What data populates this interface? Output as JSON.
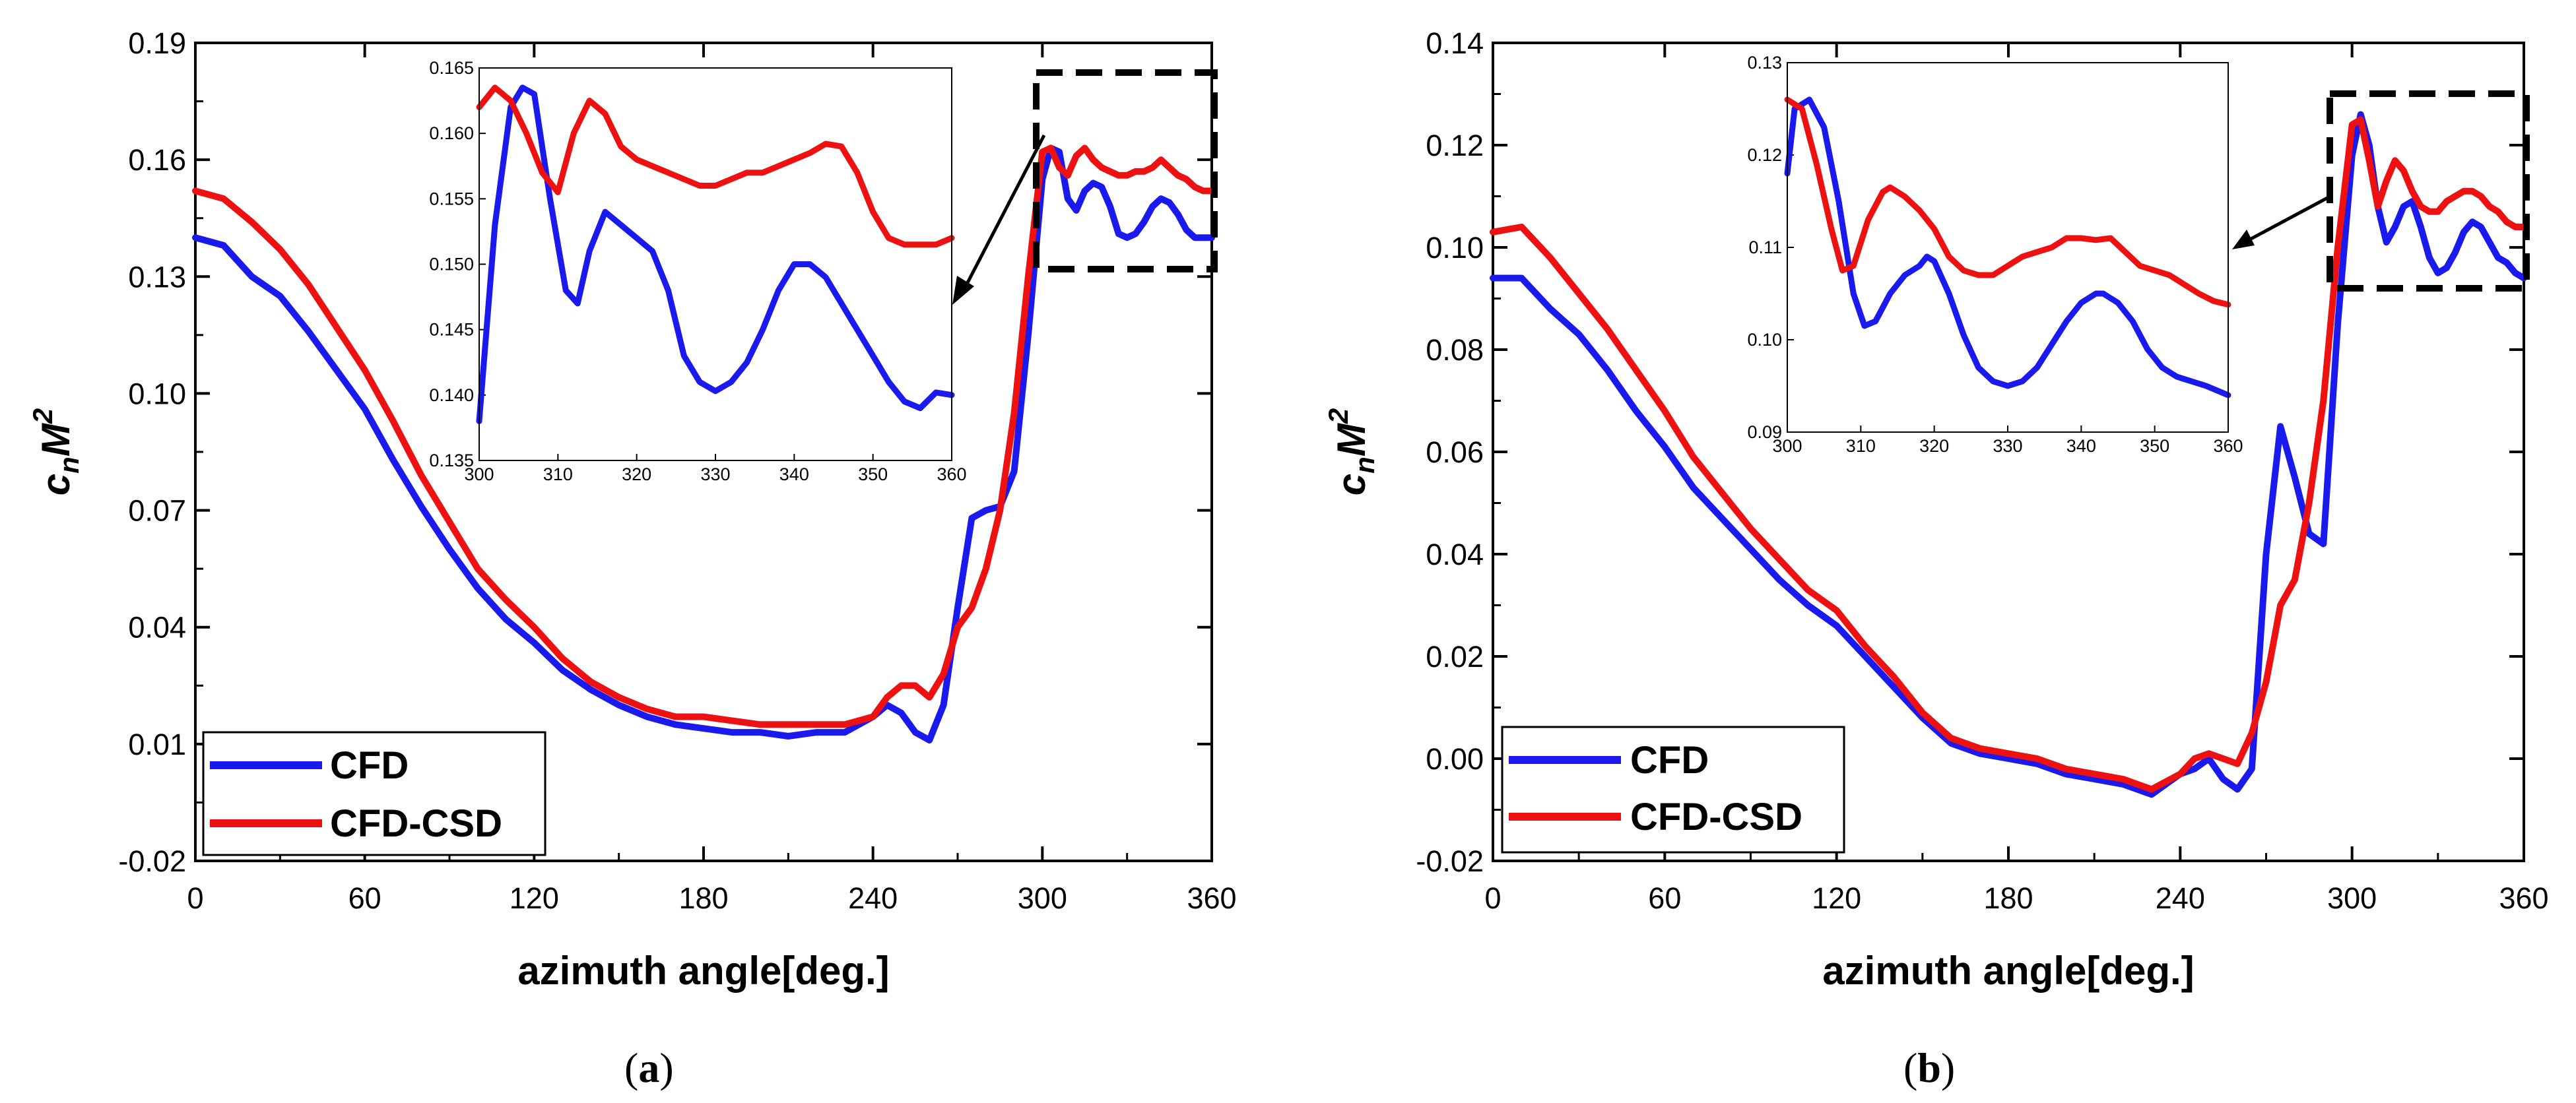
{
  "chart_data": [
    {
      "type": "line",
      "panel": "a",
      "caption": "(a)",
      "xlabel": "azimuth angle[deg.]",
      "ylabel": "c_n M^2",
      "xlim": [
        0,
        360
      ],
      "ylim": [
        -0.02,
        0.19
      ],
      "xticks": [
        0,
        60,
        120,
        180,
        240,
        300,
        360
      ],
      "yticks": [
        -0.02,
        0.01,
        0.04,
        0.07,
        0.1,
        0.13,
        0.16,
        0.19
      ],
      "legend": "bottom-left",
      "series": [
        {
          "name": "CFD",
          "color": "#1a1aee",
          "x": [
            0,
            10,
            20,
            30,
            40,
            50,
            60,
            70,
            80,
            90,
            100,
            110,
            120,
            130,
            140,
            150,
            160,
            170,
            180,
            190,
            200,
            210,
            220,
            230,
            240,
            245,
            250,
            255,
            260,
            265,
            270,
            275,
            280,
            285,
            290,
            295,
            300,
            303,
            306,
            309,
            312,
            315,
            318,
            321,
            324,
            327,
            330,
            333,
            336,
            339,
            342,
            345,
            348,
            351,
            354,
            357,
            360
          ],
          "y": [
            0.14,
            0.138,
            0.13,
            0.125,
            0.116,
            0.106,
            0.096,
            0.083,
            0.071,
            0.06,
            0.05,
            0.042,
            0.036,
            0.029,
            0.024,
            0.02,
            0.017,
            0.015,
            0.014,
            0.013,
            0.013,
            0.012,
            0.013,
            0.013,
            0.017,
            0.02,
            0.018,
            0.013,
            0.011,
            0.02,
            0.045,
            0.068,
            0.07,
            0.071,
            0.08,
            0.115,
            0.155,
            0.163,
            0.162,
            0.15,
            0.147,
            0.152,
            0.154,
            0.153,
            0.148,
            0.141,
            0.14,
            0.141,
            0.144,
            0.148,
            0.15,
            0.149,
            0.146,
            0.142,
            0.14,
            0.14,
            0.14
          ]
        },
        {
          "name": "CFD-CSD",
          "color": "#ee1111",
          "x": [
            0,
            10,
            20,
            30,
            40,
            50,
            60,
            70,
            80,
            90,
            100,
            110,
            120,
            130,
            140,
            150,
            160,
            170,
            180,
            190,
            200,
            210,
            220,
            230,
            240,
            245,
            250,
            255,
            260,
            265,
            270,
            275,
            280,
            285,
            290,
            295,
            300,
            303,
            306,
            309,
            312,
            315,
            318,
            321,
            324,
            327,
            330,
            333,
            336,
            339,
            342,
            345,
            348,
            351,
            354,
            357,
            360
          ],
          "y": [
            0.152,
            0.15,
            0.144,
            0.137,
            0.128,
            0.117,
            0.106,
            0.093,
            0.079,
            0.067,
            0.055,
            0.047,
            0.04,
            0.032,
            0.026,
            0.022,
            0.019,
            0.017,
            0.017,
            0.016,
            0.015,
            0.015,
            0.015,
            0.015,
            0.017,
            0.022,
            0.025,
            0.025,
            0.022,
            0.028,
            0.04,
            0.045,
            0.055,
            0.07,
            0.095,
            0.13,
            0.162,
            0.163,
            0.158,
            0.156,
            0.161,
            0.163,
            0.16,
            0.158,
            0.157,
            0.156,
            0.156,
            0.157,
            0.157,
            0.158,
            0.16,
            0.158,
            0.156,
            0.155,
            0.153,
            0.152,
            0.152
          ]
        }
      ],
      "inset": {
        "xlim": [
          300,
          360
        ],
        "ylim": [
          0.135,
          0.165
        ],
        "xticks": [
          300,
          310,
          320,
          330,
          340,
          350,
          360
        ],
        "yticks": [
          0.135,
          0.14,
          0.145,
          0.15,
          0.155,
          0.16,
          0.165
        ],
        "series": [
          {
            "name": "CFD",
            "x": [
              300,
              302,
              304,
              305.5,
              307,
              309,
              311,
              312.5,
              314,
              316,
              318,
              320,
              322,
              324,
              326,
              328,
              330,
              332,
              334,
              336,
              338,
              340,
              342,
              344,
              346,
              348,
              350,
              352,
              354,
              356,
              358,
              360
            ],
            "y": [
              0.138,
              0.153,
              0.162,
              0.1635,
              0.163,
              0.155,
              0.148,
              0.147,
              0.151,
              0.154,
              0.153,
              0.152,
              0.151,
              0.148,
              0.143,
              0.141,
              0.1403,
              0.141,
              0.1425,
              0.145,
              0.148,
              0.15,
              0.15,
              0.149,
              0.147,
              0.145,
              0.143,
              0.141,
              0.1395,
              0.139,
              0.1402,
              0.14
            ]
          },
          {
            "name": "CFD-CSD",
            "x": [
              300,
              302,
              304,
              306,
              308,
              310,
              312,
              314,
              316,
              318,
              320,
              322,
              324,
              326,
              328,
              330,
              332,
              334,
              336,
              338,
              340,
              342,
              344,
              346,
              348,
              350,
              352,
              354,
              356,
              358,
              360
            ],
            "y": [
              0.162,
              0.1635,
              0.1625,
              0.16,
              0.157,
              0.1555,
              0.16,
              0.1625,
              0.1615,
              0.159,
              0.158,
              0.1575,
              0.157,
              0.1565,
              0.156,
              0.156,
              0.1565,
              0.157,
              0.157,
              0.1575,
              0.158,
              0.1585,
              0.1592,
              0.159,
              0.157,
              0.154,
              0.152,
              0.1515,
              0.1515,
              0.1515,
              0.152
            ]
          }
        ]
      }
    },
    {
      "type": "line",
      "panel": "b",
      "caption": "(b)",
      "xlabel": "azimuth angle[deg.]",
      "ylabel": "c_n M^2",
      "xlim": [
        0,
        360
      ],
      "ylim": [
        -0.02,
        0.14
      ],
      "xticks": [
        0,
        60,
        120,
        180,
        240,
        300,
        360
      ],
      "yticks": [
        -0.02,
        0.0,
        0.02,
        0.04,
        0.06,
        0.08,
        0.1,
        0.12,
        0.14
      ],
      "legend": "bottom-left",
      "series": [
        {
          "name": "CFD",
          "color": "#1a1aee",
          "x": [
            0,
            10,
            20,
            30,
            40,
            50,
            60,
            70,
            80,
            90,
            100,
            110,
            120,
            130,
            140,
            150,
            160,
            170,
            180,
            190,
            200,
            210,
            220,
            230,
            240,
            245,
            250,
            255,
            260,
            265,
            270,
            275,
            280,
            285,
            290,
            295,
            300,
            303,
            306,
            309,
            312,
            315,
            318,
            321,
            324,
            327,
            330,
            333,
            336,
            339,
            342,
            345,
            348,
            351,
            354,
            357,
            360
          ],
          "y": [
            0.094,
            0.094,
            0.088,
            0.083,
            0.076,
            0.068,
            0.061,
            0.053,
            0.047,
            0.041,
            0.035,
            0.03,
            0.026,
            0.02,
            0.014,
            0.008,
            0.003,
            0.001,
            0.0,
            -0.001,
            -0.003,
            -0.004,
            -0.005,
            -0.007,
            -0.003,
            -0.002,
            0.0,
            -0.004,
            -0.006,
            -0.002,
            0.04,
            0.065,
            0.055,
            0.044,
            0.042,
            0.085,
            0.118,
            0.126,
            0.12,
            0.108,
            0.101,
            0.104,
            0.108,
            0.109,
            0.104,
            0.098,
            0.095,
            0.096,
            0.099,
            0.103,
            0.105,
            0.104,
            0.101,
            0.098,
            0.097,
            0.095,
            0.094
          ]
        },
        {
          "name": "CFD-CSD",
          "color": "#ee1111",
          "x": [
            0,
            10,
            20,
            30,
            40,
            50,
            60,
            70,
            80,
            90,
            100,
            110,
            120,
            130,
            140,
            150,
            160,
            170,
            180,
            190,
            200,
            210,
            220,
            230,
            240,
            245,
            250,
            255,
            260,
            265,
            270,
            275,
            280,
            285,
            290,
            295,
            300,
            303,
            306,
            309,
            312,
            315,
            318,
            321,
            324,
            327,
            330,
            333,
            336,
            339,
            342,
            345,
            348,
            351,
            354,
            357,
            360
          ],
          "y": [
            0.103,
            0.104,
            0.098,
            0.091,
            0.084,
            0.076,
            0.068,
            0.059,
            0.052,
            0.045,
            0.039,
            0.033,
            0.029,
            0.022,
            0.016,
            0.009,
            0.004,
            0.002,
            0.001,
            0.0,
            -0.002,
            -0.003,
            -0.004,
            -0.006,
            -0.003,
            0.0,
            0.001,
            0.0,
            -0.001,
            0.005,
            0.015,
            0.03,
            0.035,
            0.05,
            0.07,
            0.1,
            0.124,
            0.125,
            0.117,
            0.108,
            0.113,
            0.117,
            0.115,
            0.111,
            0.108,
            0.107,
            0.107,
            0.109,
            0.11,
            0.111,
            0.111,
            0.11,
            0.108,
            0.107,
            0.105,
            0.104,
            0.104
          ]
        }
      ],
      "inset": {
        "xlim": [
          300,
          360
        ],
        "ylim": [
          0.09,
          0.13
        ],
        "xticks": [
          300,
          310,
          320,
          330,
          340,
          350,
          360
        ],
        "yticks": [
          0.09,
          0.1,
          0.11,
          0.12,
          0.13
        ],
        "series": [
          {
            "name": "CFD",
            "x": [
              300,
              301,
              303,
              305,
              307,
              309,
              310.5,
              312,
              314,
              316,
              318,
              319,
              320,
              322,
              324,
              326,
              328,
              330,
              332,
              334,
              336,
              338,
              340,
              342,
              343,
              345,
              347,
              349,
              351,
              353,
              355,
              357,
              360
            ],
            "y": [
              0.118,
              0.125,
              0.126,
              0.123,
              0.115,
              0.105,
              0.1015,
              0.102,
              0.105,
              0.107,
              0.108,
              0.109,
              0.1085,
              0.105,
              0.1005,
              0.097,
              0.0955,
              0.095,
              0.0955,
              0.097,
              0.0995,
              0.102,
              0.104,
              0.105,
              0.105,
              0.104,
              0.102,
              0.099,
              0.097,
              0.096,
              0.0955,
              0.095,
              0.094
            ]
          },
          {
            "name": "CFD-CSD",
            "x": [
              300,
              302,
              304,
              306,
              307.5,
              309,
              311,
              313,
              314,
              316,
              318,
              320,
              322,
              324,
              326,
              328,
              330,
              332,
              334,
              336,
              338,
              340,
              342,
              344,
              346,
              348,
              350,
              352,
              354,
              356,
              358,
              360
            ],
            "y": [
              0.126,
              0.125,
              0.119,
              0.112,
              0.1075,
              0.108,
              0.113,
              0.116,
              0.1165,
              0.1155,
              0.114,
              0.112,
              0.109,
              0.1075,
              0.107,
              0.107,
              0.108,
              0.109,
              0.1095,
              0.11,
              0.111,
              0.111,
              0.1108,
              0.111,
              0.1095,
              0.108,
              0.1075,
              0.107,
              0.106,
              0.105,
              0.1042,
              0.1038
            ]
          }
        ]
      }
    }
  ]
}
